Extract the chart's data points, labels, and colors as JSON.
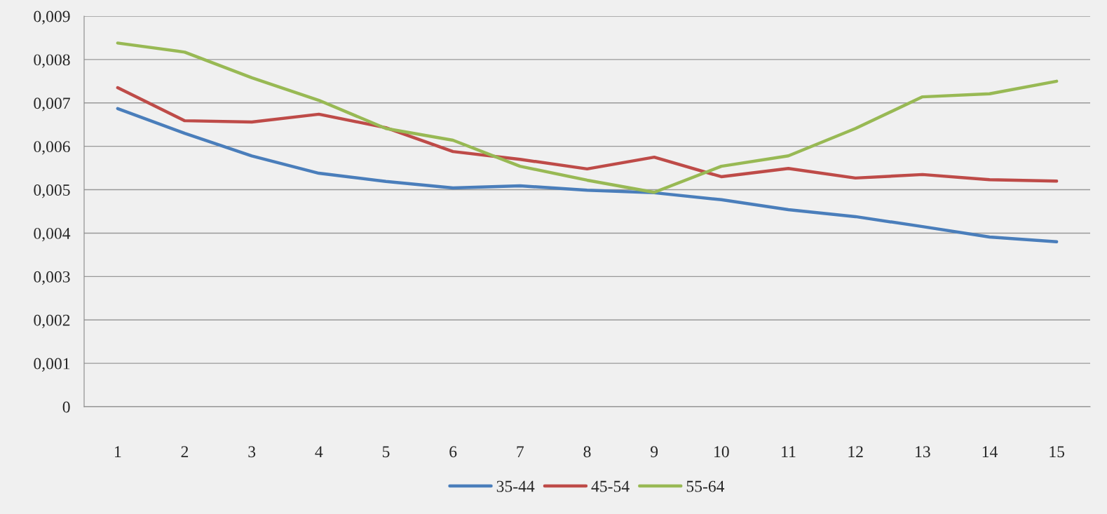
{
  "chart_data": {
    "type": "line",
    "categories": [
      "1",
      "2",
      "3",
      "4",
      "5",
      "6",
      "7",
      "8",
      "9",
      "10",
      "11",
      "12",
      "13",
      "14",
      "15"
    ],
    "series": [
      {
        "name": "35-44",
        "color": "#4a7ebb",
        "values": [
          0.00687,
          0.0063,
          0.00578,
          0.00538,
          0.00519,
          0.00504,
          0.00509,
          0.00499,
          0.00493,
          0.00477,
          0.00454,
          0.00438,
          0.00415,
          0.00391,
          0.0038
        ]
      },
      {
        "name": "45-54",
        "color": "#be4b48",
        "values": [
          0.00735,
          0.00659,
          0.00656,
          0.00674,
          0.00643,
          0.00588,
          0.0057,
          0.00548,
          0.00575,
          0.0053,
          0.00549,
          0.00527,
          0.00535,
          0.00523,
          0.0052
        ]
      },
      {
        "name": "55-64",
        "color": "#98b954",
        "values": [
          0.00838,
          0.00817,
          0.00758,
          0.00706,
          0.00641,
          0.00614,
          0.00554,
          0.00522,
          0.00494,
          0.00554,
          0.00578,
          0.00641,
          0.00714,
          0.00721,
          0.0075
        ]
      }
    ],
    "ylim": [
      0,
      0.009
    ],
    "yticks": [
      0,
      {
        "value": 0.001,
        "label": "0,001"
      },
      {
        "value": 0.002,
        "label": "0,002"
      },
      {
        "value": 0.003,
        "label": "0,003"
      },
      {
        "value": 0.004,
        "label": "0,004"
      },
      {
        "value": 0.005,
        "label": "0,005"
      },
      {
        "value": 0.006,
        "label": "0,006"
      },
      {
        "value": 0.007,
        "label": "0,007"
      },
      {
        "value": 0.008,
        "label": "0,008"
      },
      {
        "value": 0.009,
        "label": "0,009"
      }
    ],
    "grid": "y",
    "legend": "bottom",
    "marker": "none",
    "line_style": "solid"
  }
}
